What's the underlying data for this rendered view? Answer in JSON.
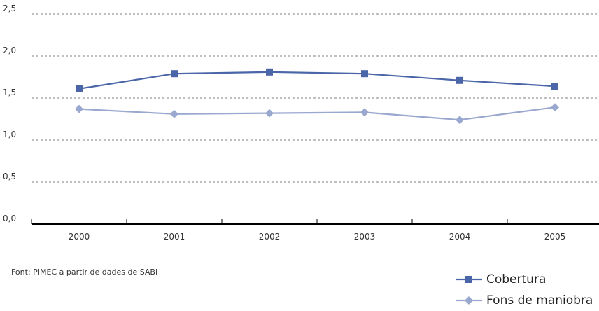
{
  "chart_data": {
    "type": "line",
    "categories": [
      "2000",
      "2001",
      "2002",
      "2003",
      "2004",
      "2005"
    ],
    "series": [
      {
        "name": "Cobertura",
        "values": [
          1.61,
          1.79,
          1.81,
          1.79,
          1.71,
          1.64
        ],
        "color": "#4a65a8",
        "marker": "square"
      },
      {
        "name": "Fons de maniobra",
        "values": [
          1.37,
          1.31,
          1.32,
          1.33,
          1.24,
          1.39
        ],
        "color": "#9aa8d0",
        "marker": "diamond"
      }
    ],
    "yticks": [
      "0,0",
      "0,5",
      "1,0",
      "1,5",
      "2,0",
      "2,5"
    ],
    "ylim": [
      0,
      2.5
    ],
    "grid": true,
    "legend_position": "bottom-right"
  },
  "source": "Font: PIMEC a partir de dades de SABI"
}
